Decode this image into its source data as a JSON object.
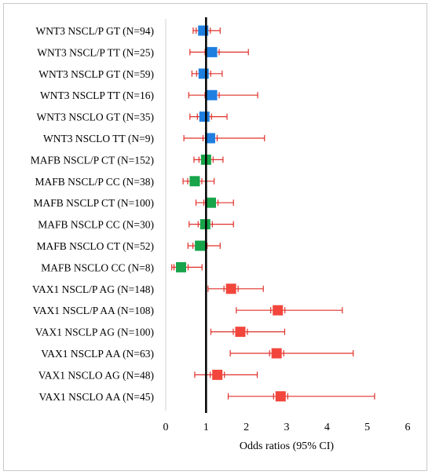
{
  "chart_data": {
    "type": "forest",
    "xlabel": "Odds ratios (95% CI)",
    "xlim": [
      0,
      6
    ],
    "xticks": [
      0,
      1,
      2,
      3,
      4,
      5,
      6
    ],
    "reference_line": 1,
    "rows": [
      {
        "label": "WNT3 NSCL/P GT (N=94)",
        "or": 0.93,
        "lower": 0.68,
        "upper": 1.35,
        "color": "#1f7fe0"
      },
      {
        "label": "WNT3 NSCL/P TT (N=25)",
        "or": 1.15,
        "lower": 0.6,
        "upper": 2.05,
        "color": "#1f7fe0"
      },
      {
        "label": "WNT3 NSCLP GT (N=59)",
        "or": 0.94,
        "lower": 0.65,
        "upper": 1.4,
        "color": "#1f7fe0"
      },
      {
        "label": "WNT3 NSCLP TT (N=16)",
        "or": 1.15,
        "lower": 0.57,
        "upper": 2.28,
        "color": "#1f7fe0"
      },
      {
        "label": "WNT3 NSCLO GT (N=35)",
        "or": 0.96,
        "lower": 0.6,
        "upper": 1.52,
        "color": "#1f7fe0"
      },
      {
        "label": "WNT3 NSCLO TT (N=9)",
        "or": 1.1,
        "lower": 0.45,
        "upper": 2.45,
        "color": "#1f7fe0"
      },
      {
        "label": "MAFB NSCL/P CT (N=152)",
        "or": 1.0,
        "lower": 0.7,
        "upper": 1.42,
        "color": "#17a44a"
      },
      {
        "label": "MAFB NSCL/P CC (N=38)",
        "or": 0.72,
        "lower": 0.43,
        "upper": 1.2,
        "color": "#17a44a"
      },
      {
        "label": "MAFB NSCLP CT (N=100)",
        "or": 1.12,
        "lower": 0.75,
        "upper": 1.68,
        "color": "#17a44a"
      },
      {
        "label": "MAFB NSCLP CC (N=30)",
        "or": 0.98,
        "lower": 0.58,
        "upper": 1.68,
        "color": "#17a44a"
      },
      {
        "label": "MAFB NSCLO CT (N=52)",
        "or": 0.85,
        "lower": 0.55,
        "upper": 1.35,
        "color": "#17a44a"
      },
      {
        "label": "MAFB NSCLO CC (N=8)",
        "or": 0.38,
        "lower": 0.15,
        "upper": 0.9,
        "color": "#17a44a"
      },
      {
        "label": "VAX1 NSCL/P AG (N=148)",
        "or": 1.62,
        "lower": 1.05,
        "upper": 2.42,
        "color": "#f2463c"
      },
      {
        "label": "VAX1 NSCL/P AA (N=108)",
        "or": 2.78,
        "lower": 1.75,
        "upper": 4.38,
        "color": "#f2463c"
      },
      {
        "label": "VAX1 NSCLP AG (N=100)",
        "or": 1.85,
        "lower": 1.12,
        "upper": 2.95,
        "color": "#f2463c"
      },
      {
        "label": "VAX1 NSCLP AA (N=63)",
        "or": 2.75,
        "lower": 1.6,
        "upper": 4.65,
        "color": "#f2463c"
      },
      {
        "label": "VAX1 NSCLO AG (N=48)",
        "or": 1.28,
        "lower": 0.72,
        "upper": 2.27,
        "color": "#f2463c"
      },
      {
        "label": "VAX1 NSCLO AA (N=45)",
        "or": 2.85,
        "lower": 1.55,
        "upper": 5.18,
        "color": "#f2463c"
      }
    ],
    "whisker_color": "#e0302a"
  }
}
